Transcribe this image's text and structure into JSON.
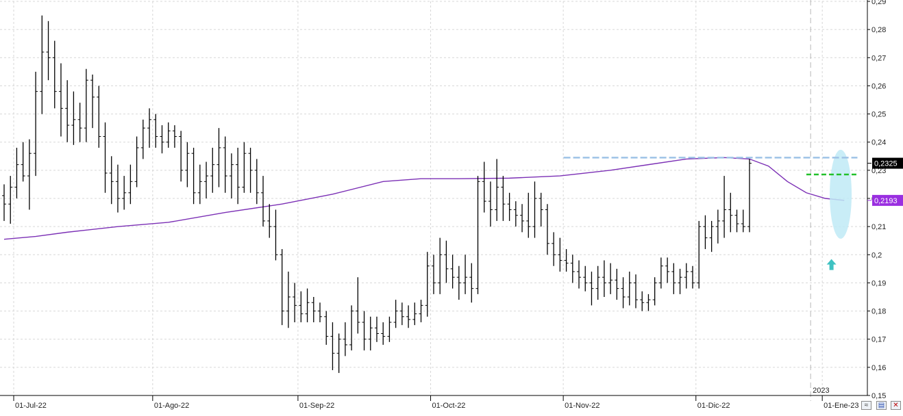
{
  "chart_data": {
    "type": "ohlc",
    "ylim": [
      0.15,
      0.29
    ],
    "y_ticks": [
      "0,15",
      "0,16",
      "0,17",
      "0,18",
      "0,19",
      "0,2",
      "0,21",
      "0,22",
      "0,23",
      "0,24",
      "0,25",
      "0,26",
      "0,27",
      "0,28",
      "0,29"
    ],
    "y_tick_values": [
      0.15,
      0.16,
      0.17,
      0.18,
      0.19,
      0.2,
      0.21,
      0.22,
      0.23,
      0.24,
      0.25,
      0.26,
      0.27,
      0.28,
      0.29
    ],
    "x_labels": [
      {
        "label": "01-Jul-22",
        "bar": 0
      },
      {
        "label": "01-Ago-22",
        "bar": 22
      },
      {
        "label": "01-Sep-22",
        "bar": 45
      },
      {
        "label": "01-Oct-22",
        "bar": 66
      },
      {
        "label": "01-Nov-22",
        "bar": 87
      },
      {
        "label": "01-Dic-22",
        "bar": 108
      },
      {
        "label": "01-Ene-23",
        "bar": 128
      }
    ],
    "year_marker": {
      "label": "2023",
      "bar": 128
    },
    "bar_spacing_days": 1,
    "ohlc": [
      [
        0.221,
        0.225,
        0.212,
        0.218
      ],
      [
        0.218,
        0.228,
        0.211,
        0.224
      ],
      [
        0.224,
        0.238,
        0.22,
        0.232
      ],
      [
        0.232,
        0.24,
        0.226,
        0.228
      ],
      [
        0.228,
        0.241,
        0.216,
        0.236
      ],
      [
        0.236,
        0.265,
        0.228,
        0.258
      ],
      [
        0.258,
        0.285,
        0.25,
        0.272
      ],
      [
        0.272,
        0.283,
        0.262,
        0.27
      ],
      [
        0.27,
        0.276,
        0.252,
        0.258
      ],
      [
        0.258,
        0.268,
        0.242,
        0.252
      ],
      [
        0.252,
        0.262,
        0.24,
        0.246
      ],
      [
        0.246,
        0.258,
        0.239,
        0.248
      ],
      [
        0.248,
        0.254,
        0.24,
        0.245
      ],
      [
        0.245,
        0.266,
        0.24,
        0.262
      ],
      [
        0.262,
        0.264,
        0.245,
        0.256
      ],
      [
        0.256,
        0.26,
        0.238,
        0.242
      ],
      [
        0.242,
        0.247,
        0.222,
        0.229
      ],
      [
        0.229,
        0.235,
        0.218,
        0.226
      ],
      [
        0.226,
        0.232,
        0.215,
        0.22
      ],
      [
        0.22,
        0.228,
        0.216,
        0.222
      ],
      [
        0.222,
        0.232,
        0.218,
        0.226
      ],
      [
        0.226,
        0.242,
        0.224,
        0.238
      ],
      [
        0.238,
        0.248,
        0.234,
        0.245
      ],
      [
        0.245,
        0.252,
        0.238,
        0.248
      ],
      [
        0.248,
        0.25,
        0.238,
        0.242
      ],
      [
        0.242,
        0.246,
        0.236,
        0.24
      ],
      [
        0.24,
        0.247,
        0.238,
        0.244
      ],
      [
        0.244,
        0.246,
        0.238,
        0.242
      ],
      [
        0.242,
        0.244,
        0.226,
        0.23
      ],
      [
        0.23,
        0.24,
        0.224,
        0.236
      ],
      [
        0.236,
        0.238,
        0.218,
        0.222
      ],
      [
        0.222,
        0.232,
        0.218,
        0.226
      ],
      [
        0.226,
        0.233,
        0.22,
        0.228
      ],
      [
        0.228,
        0.238,
        0.222,
        0.232
      ],
      [
        0.232,
        0.245,
        0.224,
        0.238
      ],
      [
        0.238,
        0.242,
        0.222,
        0.228
      ],
      [
        0.228,
        0.236,
        0.22,
        0.232
      ],
      [
        0.232,
        0.238,
        0.218,
        0.224
      ],
      [
        0.224,
        0.24,
        0.222,
        0.236
      ],
      [
        0.236,
        0.238,
        0.222,
        0.23
      ],
      [
        0.23,
        0.234,
        0.218,
        0.222
      ],
      [
        0.222,
        0.228,
        0.21,
        0.212
      ],
      [
        0.212,
        0.218,
        0.206,
        0.21
      ],
      [
        0.21,
        0.216,
        0.198,
        0.2
      ],
      [
        0.2,
        0.202,
        0.175,
        0.18
      ],
      [
        0.18,
        0.194,
        0.174,
        0.185
      ],
      [
        0.185,
        0.19,
        0.176,
        0.182
      ],
      [
        0.182,
        0.187,
        0.176,
        0.179
      ],
      [
        0.179,
        0.188,
        0.176,
        0.183
      ],
      [
        0.183,
        0.185,
        0.176,
        0.18
      ],
      [
        0.18,
        0.183,
        0.176,
        0.178
      ],
      [
        0.178,
        0.18,
        0.168,
        0.171
      ],
      [
        0.171,
        0.176,
        0.159,
        0.165
      ],
      [
        0.165,
        0.172,
        0.158,
        0.17
      ],
      [
        0.17,
        0.176,
        0.164,
        0.168
      ],
      [
        0.168,
        0.182,
        0.166,
        0.18
      ],
      [
        0.18,
        0.192,
        0.172,
        0.176
      ],
      [
        0.176,
        0.18,
        0.166,
        0.17
      ],
      [
        0.17,
        0.178,
        0.166,
        0.174
      ],
      [
        0.174,
        0.178,
        0.169,
        0.172
      ],
      [
        0.172,
        0.176,
        0.168,
        0.171
      ],
      [
        0.171,
        0.178,
        0.169,
        0.176
      ],
      [
        0.176,
        0.184,
        0.174,
        0.18
      ],
      [
        0.18,
        0.183,
        0.175,
        0.178
      ],
      [
        0.178,
        0.182,
        0.174,
        0.177
      ],
      [
        0.177,
        0.183,
        0.175,
        0.179
      ],
      [
        0.179,
        0.184,
        0.176,
        0.182
      ],
      [
        0.182,
        0.201,
        0.178,
        0.196
      ],
      [
        0.196,
        0.2,
        0.186,
        0.19
      ],
      [
        0.19,
        0.206,
        0.186,
        0.2
      ],
      [
        0.2,
        0.205,
        0.19,
        0.195
      ],
      [
        0.195,
        0.2,
        0.188,
        0.192
      ],
      [
        0.192,
        0.196,
        0.184,
        0.19
      ],
      [
        0.19,
        0.2,
        0.186,
        0.192
      ],
      [
        0.192,
        0.197,
        0.183,
        0.188
      ],
      [
        0.188,
        0.228,
        0.186,
        0.226
      ],
      [
        0.226,
        0.233,
        0.215,
        0.219
      ],
      [
        0.219,
        0.226,
        0.21,
        0.216
      ],
      [
        0.216,
        0.234,
        0.212,
        0.224
      ],
      [
        0.224,
        0.228,
        0.212,
        0.218
      ],
      [
        0.218,
        0.222,
        0.212,
        0.216
      ],
      [
        0.216,
        0.219,
        0.21,
        0.214
      ],
      [
        0.214,
        0.218,
        0.208,
        0.212
      ],
      [
        0.212,
        0.222,
        0.206,
        0.21
      ],
      [
        0.21,
        0.226,
        0.206,
        0.22
      ],
      [
        0.22,
        0.222,
        0.21,
        0.216
      ],
      [
        0.216,
        0.218,
        0.2,
        0.204
      ],
      [
        0.204,
        0.208,
        0.196,
        0.2
      ],
      [
        0.2,
        0.206,
        0.194,
        0.198
      ],
      [
        0.198,
        0.202,
        0.194,
        0.197
      ],
      [
        0.197,
        0.2,
        0.19,
        0.194
      ],
      [
        0.194,
        0.198,
        0.188,
        0.192
      ],
      [
        0.192,
        0.196,
        0.187,
        0.19
      ],
      [
        0.19,
        0.194,
        0.182,
        0.188
      ],
      [
        0.188,
        0.196,
        0.184,
        0.192
      ],
      [
        0.192,
        0.198,
        0.185,
        0.19
      ],
      [
        0.19,
        0.197,
        0.186,
        0.191
      ],
      [
        0.191,
        0.195,
        0.184,
        0.188
      ],
      [
        0.188,
        0.192,
        0.181,
        0.185
      ],
      [
        0.185,
        0.194,
        0.182,
        0.19
      ],
      [
        0.19,
        0.193,
        0.181,
        0.184
      ],
      [
        0.184,
        0.187,
        0.18,
        0.183
      ],
      [
        0.183,
        0.186,
        0.18,
        0.184
      ],
      [
        0.184,
        0.192,
        0.182,
        0.19
      ],
      [
        0.19,
        0.199,
        0.188,
        0.196
      ],
      [
        0.196,
        0.199,
        0.19,
        0.194
      ],
      [
        0.194,
        0.197,
        0.186,
        0.19
      ],
      [
        0.19,
        0.195,
        0.186,
        0.192
      ],
      [
        0.192,
        0.197,
        0.188,
        0.194
      ],
      [
        0.194,
        0.196,
        0.188,
        0.19
      ],
      [
        0.19,
        0.212,
        0.188,
        0.21
      ],
      [
        0.21,
        0.214,
        0.202,
        0.206
      ],
      [
        0.206,
        0.212,
        0.201,
        0.21
      ],
      [
        0.21,
        0.216,
        0.204,
        0.212
      ],
      [
        0.212,
        0.228,
        0.206,
        0.216
      ],
      [
        0.216,
        0.222,
        0.208,
        0.214
      ],
      [
        0.214,
        0.216,
        0.208,
        0.211
      ],
      [
        0.211,
        0.216,
        0.208,
        0.21
      ],
      [
        0.21,
        0.234,
        0.208,
        0.2325
      ]
    ],
    "moving_average": {
      "color": "#7b2fb5",
      "points": [
        [
          0,
          0.2055
        ],
        [
          5,
          0.2065
        ],
        [
          10,
          0.208
        ],
        [
          18,
          0.21
        ],
        [
          26,
          0.2115
        ],
        [
          35,
          0.215
        ],
        [
          44,
          0.218
        ],
        [
          52,
          0.2215
        ],
        [
          60,
          0.226
        ],
        [
          66,
          0.227
        ],
        [
          72,
          0.227
        ],
        [
          80,
          0.2272
        ],
        [
          88,
          0.228
        ],
        [
          96,
          0.23
        ],
        [
          102,
          0.232
        ],
        [
          108,
          0.234
        ],
        [
          114,
          0.2345
        ],
        [
          118,
          0.234
        ],
        [
          121,
          0.2315
        ],
        [
          124,
          0.226
        ],
        [
          127,
          0.222
        ],
        [
          130,
          0.22
        ],
        [
          133,
          0.2193
        ]
      ],
      "last_value_label": "0,2193",
      "label_color": "#9a2fe0"
    },
    "last_price_label": "0,2325",
    "annotations": {
      "resistance_line": {
        "color": "#9ec3e6",
        "style": "dashed",
        "y": 0.2345,
        "from_bar": 89,
        "to_bar": 134
      },
      "green_line": {
        "color": "#22c02a",
        "style": "dashed",
        "y": 0.2285,
        "from_bar": 127,
        "to_bar": 134
      },
      "highlight_ellipse": {
        "color": "#bfeaf6",
        "center_bar": 132,
        "center_y": 0.2215,
        "note": ""
      },
      "arrow": {
        "color": "#3fc2c2",
        "direction": "up",
        "bar": 130,
        "y": 0.1965
      }
    },
    "grid": true,
    "title": "",
    "xlabel": "",
    "ylabel": ""
  },
  "toolbar": {
    "zoom_icon": "zoom-icon",
    "save_icon": "save-icon",
    "close_icon": "close-icon"
  },
  "colors": {
    "bars": "#000000",
    "grid": "#d7d7d7",
    "axis": "#000000",
    "price_tag_bg": "#000000",
    "ma_tag_bg": "#9a2fe0"
  }
}
